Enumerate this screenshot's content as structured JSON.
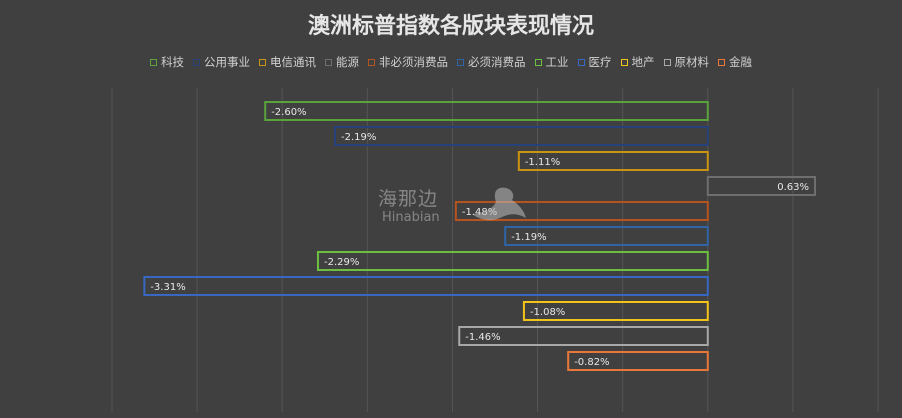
{
  "chart_data": {
    "type": "bar",
    "orientation": "horizontal",
    "title": "澳洲标普指数各版块表现情况",
    "series": [
      {
        "name": "科技",
        "value": -2.6,
        "label": "-2.60%",
        "color": "#5aa23c"
      },
      {
        "name": "公用事业",
        "value": -2.19,
        "label": "-2.19%",
        "color": "#27417a"
      },
      {
        "name": "电信通讯",
        "value": -1.11,
        "label": "-1.11%",
        "color": "#c99412"
      },
      {
        "name": "能源",
        "value": 0.63,
        "label": "0.63%",
        "color": "#6e6e6e"
      },
      {
        "name": "非必须消费品",
        "value": -1.48,
        "label": "-1.48%",
        "color": "#b5541e"
      },
      {
        "name": "必须消费品",
        "value": -1.19,
        "label": "-1.19%",
        "color": "#2f65a8"
      },
      {
        "name": "工业",
        "value": -2.29,
        "label": "-2.29%",
        "color": "#6cbf3f"
      },
      {
        "name": "医疗",
        "value": -3.31,
        "label": "-3.31%",
        "color": "#3768c4"
      },
      {
        "name": "地产",
        "value": -1.08,
        "label": "-1.08%",
        "color": "#f2c318"
      },
      {
        "name": "原材料",
        "value": -1.46,
        "label": "-1.46%",
        "color": "#a8a8a8"
      },
      {
        "name": "金融",
        "value": -0.82,
        "label": "-0.82%",
        "color": "#e8783a"
      }
    ],
    "xlim": [
      -3.5,
      1.0
    ],
    "grid": true,
    "legend_position": "top"
  },
  "watermark": {
    "cn": "海那边",
    "en": "Hinabian"
  }
}
